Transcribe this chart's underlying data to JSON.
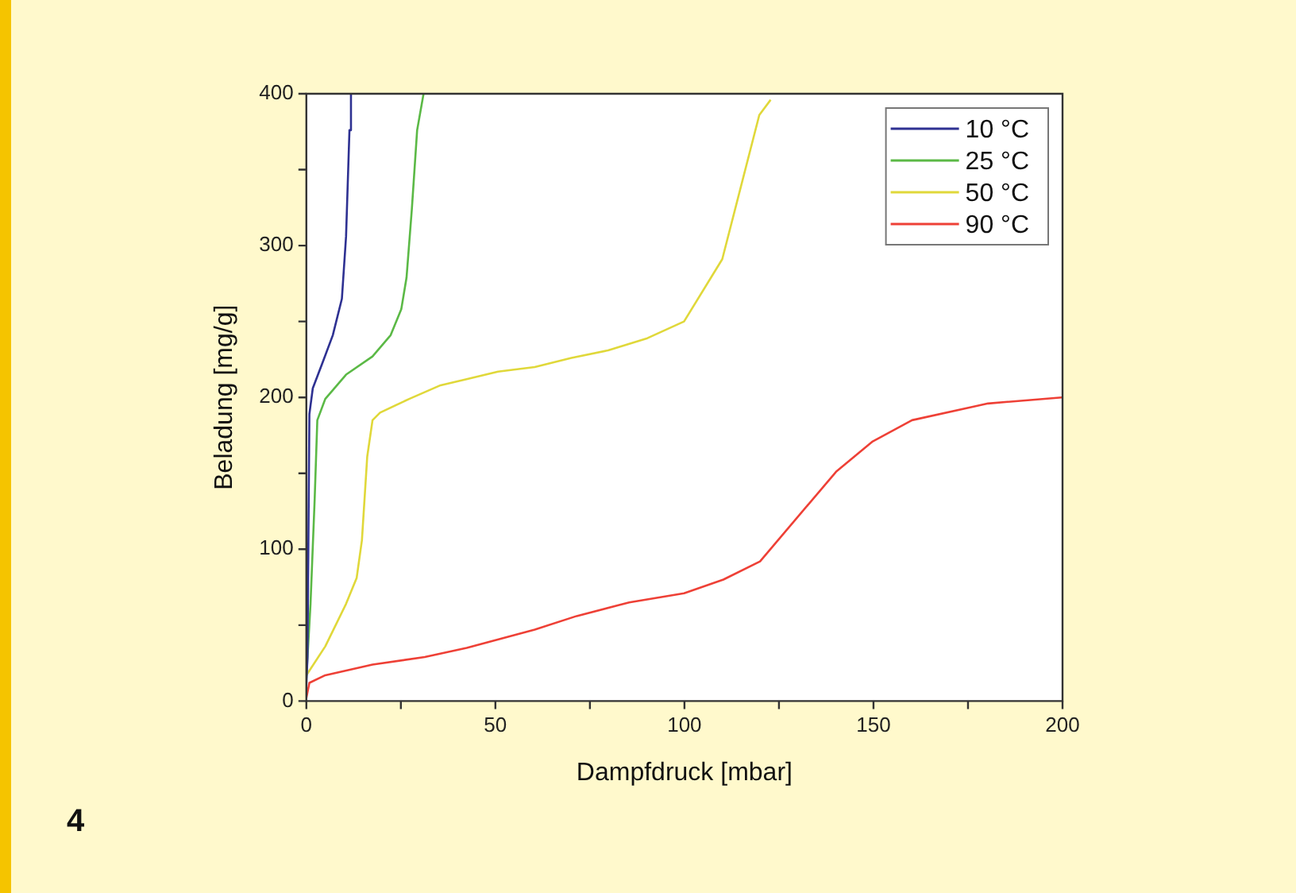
{
  "chart_data": {
    "type": "line",
    "xlabel": "Dampfdruck [mbar]",
    "ylabel": "Beladung [mg/g]",
    "xlim": [
      0,
      200
    ],
    "ylim": [
      0,
      400
    ],
    "xticks": [
      0,
      {
        "value": 25,
        "label": null
      },
      50,
      {
        "value": 75,
        "label": null
      },
      100,
      {
        "value": 125,
        "label": null
      },
      150,
      {
        "value": 175,
        "label": null
      },
      200
    ],
    "yticks": [
      0,
      {
        "value": 50,
        "label": null
      },
      100,
      {
        "value": 150,
        "label": null
      },
      200,
      {
        "value": 250,
        "label": null
      },
      300,
      {
        "value": 350,
        "label": null
      },
      400
    ],
    "legend": "top right",
    "marker": "none",
    "line_style": "solid",
    "annotations": [
      "4"
    ],
    "series": [
      {
        "name": "10 °C",
        "color": "#2e3192",
        "x": [
          0,
          0.3,
          0.8,
          1.7,
          4.3,
          7,
          9.4,
          10.5,
          11.4,
          11.8
        ],
        "values": [
          10,
          29,
          189,
          206,
          223,
          241,
          265,
          306,
          376,
          400
        ]
      },
      {
        "name": "25 °C",
        "color": "#5bb946",
        "x": [
          0,
          1.1,
          2.2,
          2.9,
          5,
          10.5,
          17.5,
          22.3,
          25.1,
          26.5,
          27.9,
          29.3,
          31
        ],
        "values": [
          15,
          64,
          133,
          185,
          199,
          215,
          227,
          241,
          258,
          279,
          324,
          376,
          400
        ]
      },
      {
        "name": "50 °C",
        "color": "#e0d83a",
        "x": [
          0,
          5,
          10.5,
          13.3,
          14.7,
          16.1,
          17.5,
          19.5,
          27.2,
          35.5,
          42.4,
          50.7,
          60.4,
          70.1,
          79.8,
          90.2,
          99.9,
          110,
          119.8,
          122.8
        ],
        "values": [
          17,
          36,
          64,
          81,
          106,
          161,
          185,
          190,
          199,
          208,
          212,
          217,
          220,
          226,
          231,
          239,
          250,
          291,
          386,
          396
        ]
      },
      {
        "name": "90 °C",
        "color": "#ee4036",
        "x": [
          0,
          0.8,
          5,
          17.5,
          31.3,
          42.4,
          60.4,
          71.5,
          85.4,
          99.9,
          110.3,
          120,
          140.1,
          149.8,
          160.2,
          180.3,
          199.8
        ],
        "values": [
          2,
          12,
          17,
          24,
          29,
          35,
          47,
          56,
          65,
          71,
          80,
          92,
          151,
          171,
          185,
          196,
          200
        ]
      }
    ]
  }
}
